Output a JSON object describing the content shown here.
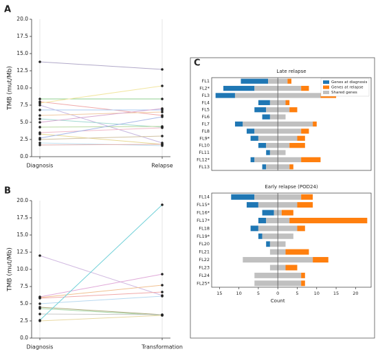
{
  "chart_data": [
    {
      "type": "slope",
      "label": "A",
      "ylabel": "TMB (mut/Mb)",
      "categories": [
        "Diagnosis",
        "Relapse"
      ],
      "ylim": [
        0,
        20
      ],
      "yticks": [
        {
          "value": 0,
          "label": "0.0"
        },
        2.5,
        {
          "value": 5,
          "label": "5.0"
        },
        7.5,
        {
          "value": 10,
          "label": "10.0"
        },
        12.5,
        {
          "value": 15,
          "label": "15.0"
        },
        17.5,
        {
          "value": 20,
          "label": "20.0"
        }
      ],
      "grid": true,
      "series": [
        {
          "color": "#b0a8c8",
          "values": [
            13.8,
            12.7
          ]
        },
        {
          "color": "#8fcf8f",
          "values": [
            8.4,
            8.4
          ]
        },
        {
          "color": "#f0a8a8",
          "values": [
            8.0,
            6.0
          ]
        },
        {
          "color": "#f2e6a0",
          "values": [
            7.8,
            10.3
          ]
        },
        {
          "color": "#c8b8e0",
          "values": [
            7.5,
            2.0
          ]
        },
        {
          "color": "#a8c8f0",
          "values": [
            6.8,
            6.8
          ]
        },
        {
          "color": "#f0c8a0",
          "values": [
            6.0,
            6.5
          ]
        },
        {
          "color": "#a0d8d0",
          "values": [
            5.5,
            4.3
          ]
        },
        {
          "color": "#d8a8d0",
          "values": [
            5.0,
            7.0
          ]
        },
        {
          "color": "#b8d8a0",
          "values": [
            4.3,
            4.4
          ]
        },
        {
          "color": "#f0b8c8",
          "values": [
            3.5,
            4.2
          ]
        },
        {
          "color": "#e8d890",
          "values": [
            3.3,
            1.8
          ]
        },
        {
          "color": "#a8b8e8",
          "values": [
            2.7,
            5.8
          ]
        },
        {
          "color": "#d0c0a0",
          "values": [
            2.5,
            3.0
          ]
        },
        {
          "color": "#c0e0f0",
          "values": [
            2.0,
            1.6
          ]
        },
        {
          "color": "#e0b0b0",
          "values": [
            1.7,
            1.8
          ]
        }
      ]
    },
    {
      "type": "slope",
      "label": "B",
      "ylabel": "TMB (mut/Mb)",
      "categories": [
        "Diagnosis",
        "Transformation"
      ],
      "ylim": [
        0,
        20
      ],
      "yticks": [
        {
          "value": 0,
          "label": "0.0"
        },
        2.5,
        {
          "value": 5,
          "label": "5.0"
        },
        7.5,
        {
          "value": 10,
          "label": "10.0"
        },
        12.5,
        {
          "value": 15,
          "label": "15.0"
        },
        17.5,
        {
          "value": 20,
          "label": "20.0"
        }
      ],
      "grid": true,
      "series": [
        {
          "color": "#d0b8e0",
          "values": [
            12.0,
            6.2
          ]
        },
        {
          "color": "#e0a8d8",
          "values": [
            6.0,
            9.3
          ]
        },
        {
          "color": "#f0c090",
          "values": [
            5.9,
            7.7
          ]
        },
        {
          "color": "#f0a8a8",
          "values": [
            5.8,
            6.7
          ]
        },
        {
          "color": "#b8d8f0",
          "values": [
            5.0,
            6.1
          ]
        },
        {
          "color": "#a8a878",
          "values": [
            4.5,
            3.4
          ]
        },
        {
          "color": "#a8d8a8",
          "values": [
            4.3,
            3.3
          ]
        },
        {
          "color": "#c8c8c8",
          "values": [
            3.5,
            3.4
          ]
        },
        {
          "color": "#70d0d8",
          "values": [
            2.6,
            19.4
          ]
        },
        {
          "color": "#e8d8a0",
          "values": [
            2.5,
            3.3
          ]
        }
      ]
    },
    {
      "type": "diverging_bar",
      "label": "C",
      "xlabel": "Count",
      "legend": "upper right",
      "xlim": [
        -17,
        24
      ],
      "xticks": [
        {
          "value": -15,
          "label": "15"
        },
        {
          "value": -10,
          "label": "10"
        },
        {
          "value": -5,
          "label": "5"
        },
        0,
        5,
        10,
        15,
        20
      ],
      "series": [
        {
          "name": "Genes at diagnosis",
          "color": "#1f77b4"
        },
        {
          "name": "Genes at relapse",
          "color": "#ff7f0e"
        },
        {
          "name": "Shared genes",
          "color": "#c0c0c0"
        }
      ],
      "panels": [
        {
          "title": "Late relapse",
          "categories": [
            "FL1",
            "FL2*",
            "FL3",
            "FL4",
            "FL5",
            "FL6",
            "FL7",
            "FL8",
            "FL9*",
            "FL10",
            "FL11",
            "FL12*",
            "FL13"
          ],
          "values": [
            [
              7,
              8,
              5,
              3,
              3,
              2,
              2,
              2,
              2,
              2,
              1,
              1,
              1
            ],
            [
              1,
              2,
              4,
              1,
              2,
              0,
              1,
              2,
              2,
              4,
              0,
              5,
              1
            ],
            [
              5,
              12,
              22,
              4,
              6,
              4,
              18,
              12,
              10,
              6,
              4,
              12,
              6
            ]
          ]
        },
        {
          "title": "Early relapse (POD24)",
          "categories": [
            "FL14",
            "FL15*",
            "FL16*",
            "FL17*",
            "FL18",
            "FL19*",
            "FL20",
            "FL21",
            "FL22",
            "FL23",
            "FL24",
            "FL25*"
          ],
          "values": [
            [
              6,
              3,
              3,
              2,
              2,
              1,
              1,
              0,
              0,
              0,
              0,
              0
            ],
            [
              3,
              4,
              3,
              20,
              2,
              0,
              0,
              6,
              4,
              3,
              1,
              1
            ],
            [
              12,
              10,
              2,
              6,
              10,
              8,
              4,
              4,
              18,
              4,
              12,
              12
            ]
          ]
        }
      ]
    }
  ]
}
